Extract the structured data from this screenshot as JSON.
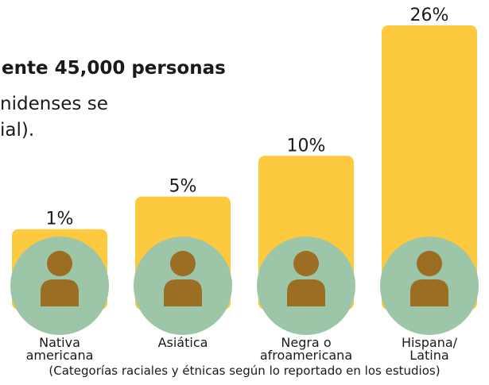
{
  "chart_data": {
    "type": "bar",
    "annotations": [
      "ente 45,000 personas",
      "nidenses se",
      "ial)."
    ],
    "categories": [
      "Nativa\namericana",
      "Asiática",
      "Negra o\nafroamericana",
      "Hispana/\nLatina"
    ],
    "values": [
      1,
      5,
      10,
      26
    ],
    "value_labels": [
      "1%",
      "5%",
      "10%",
      "26%"
    ],
    "x_label": "(Categorías raciales y étnicas según lo reportado en los estudios)",
    "color": "#fcc93f",
    "icon_color": "#9dc5a8"
  }
}
